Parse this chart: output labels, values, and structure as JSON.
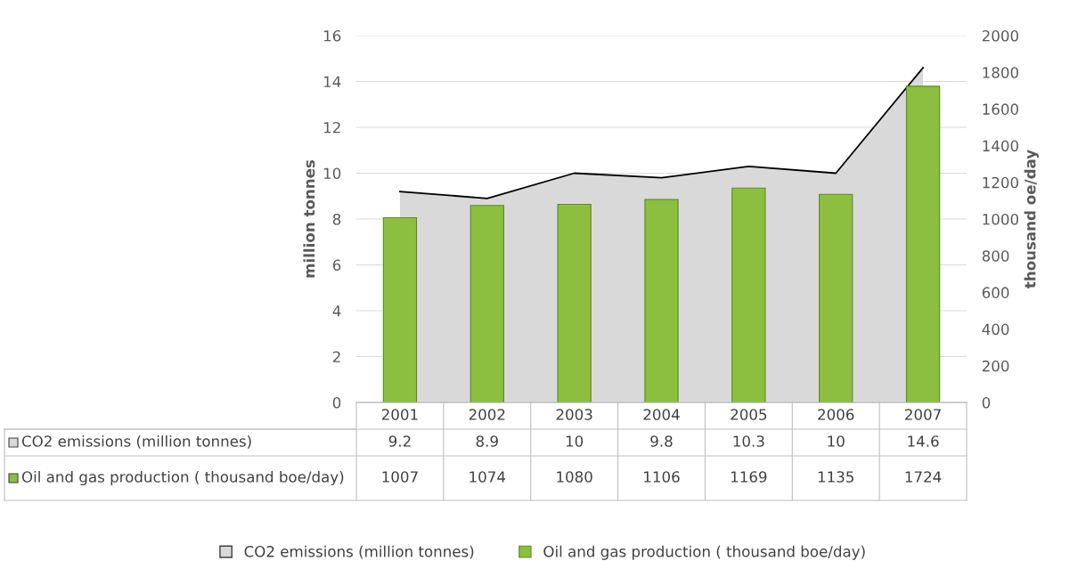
{
  "chart_data": {
    "type": "bar",
    "categories": [
      "2001",
      "2002",
      "2003",
      "2004",
      "2005",
      "2006",
      "2007"
    ],
    "series": [
      {
        "name": "CO2 emissions (million tonnes)",
        "type": "area",
        "color": "#d9d9d9",
        "values": [
          9.2,
          8.9,
          10,
          9.8,
          10.3,
          10,
          14.6
        ]
      },
      {
        "name": "Oil and gas production ( thousand boe/day)",
        "axis": "y2",
        "color": "#8cbf3f",
        "values": [
          1007,
          1074,
          1080,
          1106,
          1169,
          1135,
          1724
        ]
      }
    ],
    "ylabel": "million tonnes",
    "y2label": "thousand oe/day",
    "ylim": [
      0,
      16
    ],
    "yticks": [
      0,
      2,
      4,
      6,
      8,
      10,
      12,
      14,
      16
    ],
    "y2lim": [
      0,
      2000
    ],
    "y2ticks": [
      0,
      200,
      400,
      600,
      800,
      1000,
      1200,
      1400,
      1600,
      1800,
      2000
    ],
    "grid": "y",
    "legend": "bottom",
    "data_labels": true
  }
}
